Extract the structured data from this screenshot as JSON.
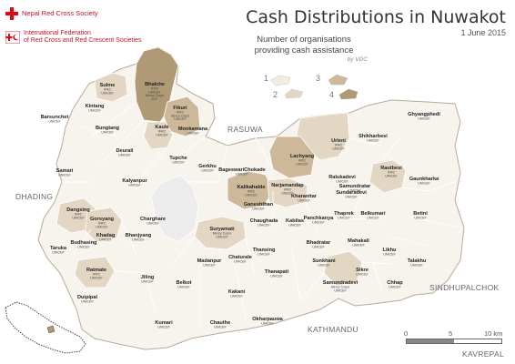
{
  "logos": {
    "nrcs": "Nepal Red Cross Society",
    "ifrc_line1": "International Federation",
    "ifrc_line2": "of Red Cross and Red Crescent Societies"
  },
  "title": "Cash Distributions in Nuwakot",
  "date": "1 June 2015",
  "legend": {
    "title_line1": "Number of organisations",
    "title_line2": "providing cash assistance",
    "subtitle": "by VDC",
    "classes": [
      {
        "label": "1",
        "color": "#f2ebe0"
      },
      {
        "label": "2",
        "color": "#e3d6c2"
      },
      {
        "label": "3",
        "color": "#cdb99a"
      },
      {
        "label": "4",
        "color": "#b09a75"
      }
    ]
  },
  "colors": {
    "no_data": "#f7f4ee",
    "boundary": "#ffffff",
    "lake": "#ececec"
  },
  "regions": {
    "rasuwa": "RASUWA",
    "dhading": "DHADING",
    "sindhupalchok": "SINDHUPALCHOK",
    "kathmandu": "KATHMANDU",
    "kavrepal": "KAVREPAL"
  },
  "scale": {
    "l0": "0",
    "l5": "5",
    "l10": "10 km"
  },
  "vdcs": [
    {
      "name": "Sulme",
      "orgs": [
        "IFRC",
        "UNICEF"
      ]
    },
    {
      "name": "Bhalche",
      "orgs": [
        "IFRC",
        "UNICEF",
        "Mercy Corps",
        "ACF"
      ]
    },
    {
      "name": "Kintang",
      "orgs": [
        "UNICEF"
      ]
    },
    {
      "name": "Fikuri",
      "orgs": [
        "IFRC",
        "Mercy Corps",
        "UNICEF"
      ]
    },
    {
      "name": "Barsunchet",
      "orgs": [
        "UNICEF"
      ]
    },
    {
      "name": "Bungtang",
      "orgs": [
        "UNICEF"
      ]
    },
    {
      "name": "Kaule",
      "orgs": [
        "IFRC",
        "UNICEF"
      ]
    },
    {
      "name": "Monkamana",
      "orgs": [
        "UNICEF"
      ]
    },
    {
      "name": "Ghyangphedi",
      "orgs": [
        "UNICEF"
      ]
    },
    {
      "name": "Deurali",
      "orgs": [
        "UNICEF"
      ]
    },
    {
      "name": "Urleni",
      "orgs": [
        "IFRC",
        "UNICEF"
      ]
    },
    {
      "name": "Shikharbesi",
      "orgs": [
        "UNICEF"
      ]
    },
    {
      "name": "Samari",
      "orgs": [
        "UNICEF"
      ]
    },
    {
      "name": "Tupche",
      "orgs": [
        "UNICEF"
      ]
    },
    {
      "name": "Gerkhu",
      "orgs": [
        "UNICEF"
      ]
    },
    {
      "name": "BageswariChokade",
      "orgs": [
        "UNICEF"
      ]
    },
    {
      "name": "Lachyang",
      "orgs": [
        "IFRC",
        "UNICEF"
      ]
    },
    {
      "name": "Kalyanpur",
      "orgs": [
        "UNICEF"
      ]
    },
    {
      "name": "Ralukadevi",
      "orgs": [
        "UNICEF"
      ]
    },
    {
      "name": "Rautbesi",
      "orgs": [
        "IFRC",
        "UNICEF"
      ]
    },
    {
      "name": "Kalikahalde",
      "orgs": [
        "IFRC",
        "UNICEF"
      ]
    },
    {
      "name": "Narjamandap",
      "orgs": [
        "IFRC",
        "UNICEF"
      ]
    },
    {
      "name": "Samundratar",
      "orgs": [
        "UNICEF"
      ]
    },
    {
      "name": "Gaunkharka",
      "orgs": [
        "UNICEF"
      ]
    },
    {
      "name": "Sundaradevi",
      "orgs": [
        "UNICEF"
      ]
    },
    {
      "name": "Kharanitar",
      "orgs": [
        "UNICEF"
      ]
    },
    {
      "name": "Ganeshthan",
      "orgs": [
        "UNICEF"
      ]
    },
    {
      "name": "Dangsing",
      "orgs": [
        "IFRC",
        "UNICEF"
      ]
    },
    {
      "name": "Gorsyang",
      "orgs": [
        "IFRC",
        "UNICEF"
      ]
    },
    {
      "name": "Charghare",
      "orgs": [
        "UNICEF"
      ]
    },
    {
      "name": "Chaughada",
      "orgs": [
        "UNICEF"
      ]
    },
    {
      "name": "Kabilas",
      "orgs": [
        "UNICEF"
      ]
    },
    {
      "name": "Panchkanya",
      "orgs": [
        "UNICEF"
      ]
    },
    {
      "name": "Thaprek",
      "orgs": [
        "UNICEF"
      ]
    },
    {
      "name": "Belkumari",
      "orgs": [
        "UNICEF"
      ]
    },
    {
      "name": "Betini",
      "orgs": [
        "UNICEF"
      ]
    },
    {
      "name": "Khadag",
      "orgs": [
        "UNICEF"
      ]
    },
    {
      "name": "Bhanjyang",
      "orgs": [
        "UNICEF"
      ]
    },
    {
      "name": "Suryamati",
      "orgs": [
        "Mercy Corps",
        "UNICEF"
      ]
    },
    {
      "name": "Taruka",
      "orgs": [
        "UNICEF"
      ]
    },
    {
      "name": "Budhasing",
      "orgs": [
        "UNICEF"
      ]
    },
    {
      "name": "Bhadratar",
      "orgs": [
        "UNICEF"
      ]
    },
    {
      "name": "Mahakali",
      "orgs": [
        "UNICEF"
      ]
    },
    {
      "name": "Likhu",
      "orgs": [
        "UNICEF"
      ]
    },
    {
      "name": "Thansing",
      "orgs": [
        "UNICEF"
      ]
    },
    {
      "name": "Chaturale",
      "orgs": [
        "UNICEF"
      ]
    },
    {
      "name": "Madanpur",
      "orgs": [
        "UNICEF"
      ]
    },
    {
      "name": "Sunkhani",
      "orgs": [
        "UNICEF"
      ]
    },
    {
      "name": "Talakhu",
      "orgs": [
        "UNICEF"
      ]
    },
    {
      "name": "Ratmate",
      "orgs": [
        "IFRC",
        "UNICEF"
      ]
    },
    {
      "name": "Jiling",
      "orgs": [
        "UNICEF"
      ]
    },
    {
      "name": "Thanapati",
      "orgs": [
        "UNICEF"
      ]
    },
    {
      "name": "Sikre",
      "orgs": [
        "UNICEF"
      ]
    },
    {
      "name": "Belkot",
      "orgs": [
        "UNICEF"
      ]
    },
    {
      "name": "Samundradevi",
      "orgs": [
        "Mercy Corps",
        "UNICEF"
      ]
    },
    {
      "name": "Chhap",
      "orgs": [
        "UNICEF"
      ]
    },
    {
      "name": "Duipipal",
      "orgs": [
        "UNICEF"
      ]
    },
    {
      "name": "Kakani",
      "orgs": [
        "UNICEF"
      ]
    },
    {
      "name": "Okharpauwa",
      "orgs": [
        "UNICEF"
      ]
    },
    {
      "name": "Kumari",
      "orgs": [
        "UNICEF"
      ]
    },
    {
      "name": "Chauthe",
      "orgs": [
        "UNICEF"
      ]
    }
  ]
}
